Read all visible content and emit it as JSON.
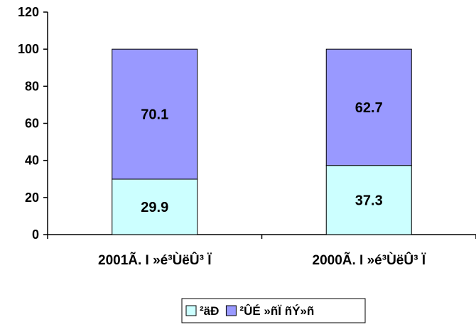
{
  "chart_data": {
    "type": "bar",
    "stacked": true,
    "categories": [
      "2001Ã. I »é³ÙëÛ³ Ï",
      "2000Ã. I »é³ÙëÛ³ Ï"
    ],
    "series": [
      {
        "name": "²äÐ",
        "values": [
          29.9,
          37.3
        ],
        "color": "#ccffff"
      },
      {
        "name": "²ÛÉ »ñÏ ñÝ»ñ",
        "values": [
          70.1,
          62.7
        ],
        "color": "#9999ff"
      }
    ],
    "data_labels": [
      [
        "29.9",
        "37.3"
      ],
      [
        "70.1",
        "62.7"
      ]
    ],
    "ylim": [
      0,
      120
    ],
    "yticks": [
      0,
      20,
      40,
      60,
      80,
      100,
      120
    ],
    "ytick_labels": [
      "0",
      "20",
      "40",
      "60",
      "80",
      "100",
      "120"
    ],
    "title": "",
    "xlabel": "",
    "ylabel": "",
    "grid": false,
    "legend_position": "bottom"
  }
}
